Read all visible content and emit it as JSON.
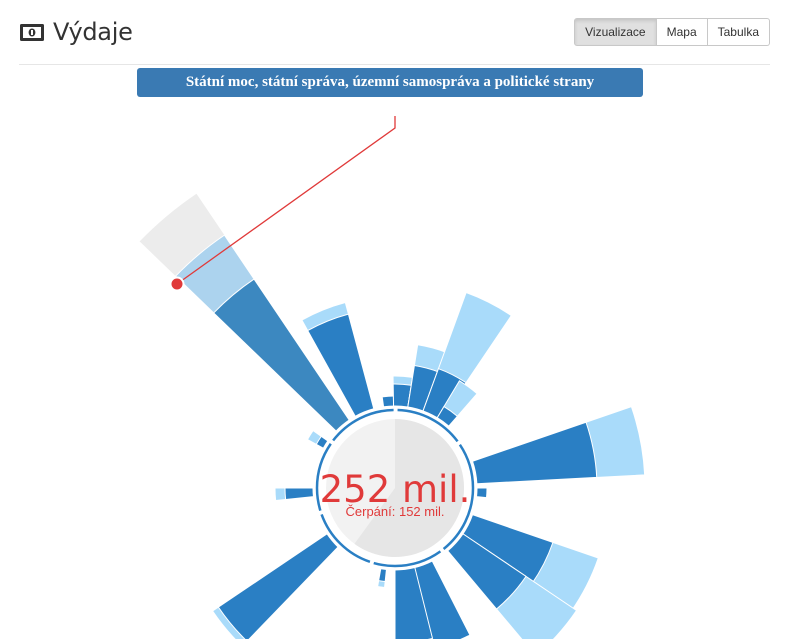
{
  "header": {
    "title": "Výdaje",
    "icon": "money-icon"
  },
  "view_tabs": [
    {
      "label": "Vizualizace",
      "active": true
    },
    {
      "label": "Mapa",
      "active": false
    },
    {
      "label": "Tabulka",
      "active": false
    }
  ],
  "tooltip": {
    "label": "Státní moc, státní správa, územní samospráva a politické strany"
  },
  "center": {
    "amount": "252 mil.",
    "drawdown": "Čerpání: 152 mil.",
    "drawdown_fraction": 0.6
  },
  "colors": {
    "spent": "#2a7fc4",
    "budget": "#a9dbfa",
    "highlight_spent": "#3c88c0",
    "highlight_budget": "#acd3ee",
    "highlight_bg": "#ececec",
    "accent": "#e03a3a",
    "ring": "#2a7fc4"
  }
}
